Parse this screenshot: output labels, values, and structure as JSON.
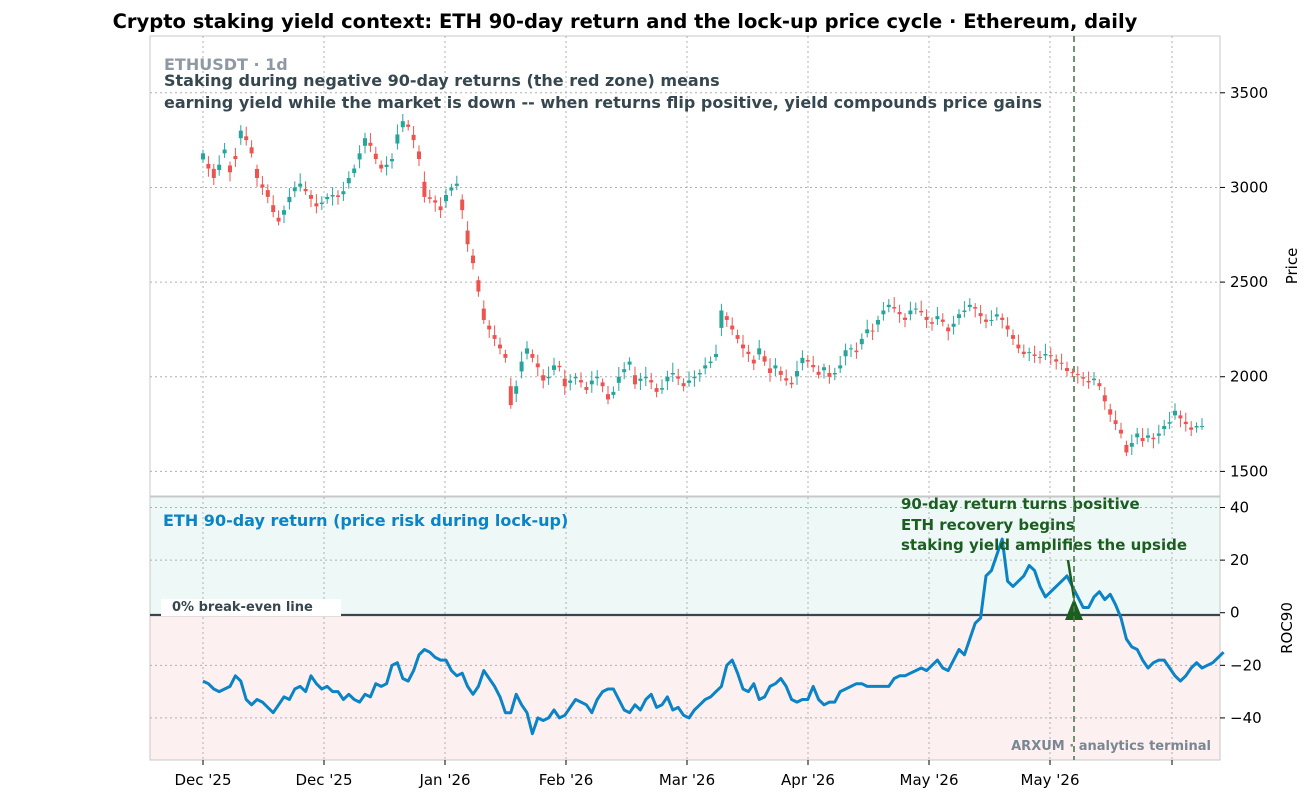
{
  "chart_data": [
    {
      "type": "candlestick",
      "title": "Crypto staking yield context: ETH 90-day return and the lock-up price cycle  ·  Ethereum, daily",
      "symbol_label": "ETHUSDT · 1d",
      "annotation_lines": [
        "Staking during negative 90-day returns (the red zone) means",
        "earning yield while the market is down -- when returns flip positive, yield compounds price gains"
      ],
      "ylabel": "Price",
      "ylim": [
        1370,
        3800
      ],
      "yticks": [
        1500,
        2000,
        2500,
        3000,
        3500
      ],
      "grid": true,
      "up_color": "#26a69a",
      "down_color": "#ef5350",
      "xtick_labels": [
        "Dec '25",
        "Dec '25",
        "Jan '26",
        "Feb '26",
        "Mar '26",
        "Apr '26",
        "May '26",
        "May '26"
      ],
      "close": [
        3180,
        3100,
        3050,
        3120,
        3200,
        3080,
        3150,
        3300,
        3250,
        3180,
        3050,
        3000,
        2950,
        2870,
        2820,
        2880,
        2950,
        3000,
        3020,
        2980,
        2940,
        2900,
        2920,
        2950,
        2960,
        2950,
        2980,
        3050,
        3100,
        3180,
        3260,
        3220,
        3150,
        3100,
        3120,
        3150,
        3280,
        3350,
        3320,
        3250,
        3150,
        2950,
        2940,
        2920,
        2880,
        2960,
        3000,
        3020,
        2880,
        2700,
        2600,
        2450,
        2300,
        2250,
        2200,
        2150,
        2100,
        1850,
        1950,
        2080,
        2150,
        2100,
        2050,
        1980,
        2000,
        2060,
        2050,
        1950,
        1980,
        2000,
        1970,
        1930,
        1980,
        2000,
        1950,
        1880,
        1920,
        2000,
        2040,
        2080,
        1960,
        1990,
        2000,
        1970,
        1920,
        1940,
        2000,
        2020,
        1990,
        1950,
        1980,
        2000,
        2020,
        2060,
        2080,
        2120,
        2350,
        2300,
        2250,
        2200,
        2150,
        2120,
        2070,
        2150,
        2080,
        2020,
        2060,
        2010,
        1980,
        1960,
        2030,
        2100,
        2080,
        2050,
        2010,
        2050,
        2000,
        2020,
        2060,
        2140,
        2150,
        2130,
        2200,
        2250,
        2240,
        2300,
        2350,
        2380,
        2360,
        2330,
        2300,
        2350,
        2360,
        2340,
        2300,
        2280,
        2320,
        2290,
        2240,
        2280,
        2330,
        2350,
        2380,
        2360,
        2320,
        2290,
        2300,
        2330,
        2300,
        2250,
        2200,
        2150,
        2120,
        2130,
        2110,
        2100,
        2120,
        2110,
        2080,
        2070,
        2030,
        2020,
        2010,
        1990,
        1970,
        1990,
        1950,
        1870,
        1800,
        1750,
        1700,
        1600,
        1650,
        1700,
        1660,
        1690,
        1670,
        1700,
        1740,
        1760,
        1820,
        1780,
        1750,
        1720,
        1740,
        1740
      ],
      "open_drift": [
        0.8,
        -0.6,
        -1.2,
        0.7,
        0.5,
        -0.9,
        -0.4,
        1.0,
        -0.5,
        -0.8,
        -1.2,
        -0.4,
        -0.9,
        -0.9,
        -0.5,
        0.6,
        0.7,
        0.5,
        0.4,
        -0.3,
        -0.5,
        -0.4,
        0.2,
        0.3,
        0.2,
        -0.2,
        0.4,
        0.7,
        0.6,
        0.8,
        1.0,
        -0.4,
        -0.7,
        -0.5,
        0.3,
        0.3,
        1.2,
        0.8,
        -0.3,
        -0.7,
        -1.0,
        -2.0,
        -0.2,
        -0.3,
        -0.5,
        0.8,
        0.4,
        0.3,
        -1.4,
        -1.8,
        -1.0,
        -1.5,
        -1.5,
        -0.5,
        -0.5,
        -0.5,
        -0.5,
        -2.5,
        1.0,
        1.3,
        0.7,
        -0.5,
        -0.5,
        -0.7,
        0.2,
        0.6,
        -0.2,
        -1.0,
        0.3,
        0.2,
        -0.3,
        -0.4,
        0.5,
        0.2,
        -0.5,
        -0.7,
        0.4,
        0.8,
        0.4,
        0.4,
        -1.2,
        0.3,
        0.2,
        -0.3,
        -0.5,
        0.2,
        0.6,
        0.2,
        -0.3,
        -0.4,
        0.3,
        0.2,
        0.2,
        0.4,
        0.2,
        0.4,
        2.3,
        -0.5,
        -0.5,
        -0.5,
        -0.5,
        -0.3,
        -0.5,
        0.8,
        -0.7,
        -0.6,
        0.4,
        -0.5,
        -0.3,
        -0.2,
        0.7,
        0.7,
        -0.2,
        -0.3,
        -0.4,
        0.4,
        -0.5,
        0.2,
        0.4,
        0.8,
        0.1,
        -0.2,
        0.7,
        0.5,
        -0.1,
        0.6,
        0.5,
        0.3,
        -0.2,
        -0.3,
        -0.3,
        0.5,
        0.1,
        -0.2,
        -0.4,
        -0.2,
        0.4,
        -0.3,
        -0.5,
        0.4,
        0.5,
        0.2,
        0.3,
        -0.2,
        -0.4,
        -0.3,
        0.1,
        0.3,
        -0.3,
        -0.5,
        -0.5,
        -0.5,
        -0.3,
        0.1,
        -0.2,
        -0.1,
        0.2,
        -0.1,
        -0.3,
        -0.1,
        -0.4,
        -0.1,
        -0.1,
        -0.2,
        -0.2,
        0.2,
        -0.4,
        -0.8,
        -0.7,
        -0.5,
        -0.5,
        -1.0,
        0.5,
        0.5,
        -0.4,
        0.3,
        -0.2,
        0.3,
        0.4,
        0.2,
        0.6,
        -0.4,
        -0.3,
        -0.3,
        0.2,
        0.0
      ]
    },
    {
      "type": "line",
      "label": "ETH 90-day return (price risk during lock-up)",
      "ylabel": "ROC90",
      "ylim": [
        -56,
        44
      ],
      "yticks": [
        -40,
        -20,
        0,
        20,
        40
      ],
      "zero_label": "0%  break-even line",
      "line_color": "#0a84c6",
      "positive_zone_color": "#eef8f7",
      "negative_zone_color": "#fdf0f0",
      "series": [
        -26,
        -27,
        -29,
        -30,
        -29,
        -28,
        -24,
        -26,
        -33,
        -35,
        -33,
        -34,
        -36,
        -38,
        -35,
        -32,
        -33,
        -29,
        -28,
        -30,
        -24,
        -27,
        -29,
        -28,
        -30,
        -30,
        -33,
        -31,
        -33,
        -34,
        -31,
        -32,
        -27,
        -28,
        -27,
        -20,
        -19,
        -25,
        -26,
        -22,
        -16,
        -14,
        -15,
        -17,
        -18,
        -18,
        -22,
        -24,
        -23,
        -28,
        -31,
        -28,
        -22,
        -25,
        -28,
        -32,
        -38,
        -38,
        -31,
        -35,
        -38,
        -46,
        -40,
        -41,
        -40,
        -37,
        -40,
        -39,
        -36,
        -33,
        -34,
        -35,
        -38,
        -33,
        -30,
        -29,
        -29,
        -33,
        -37,
        -38,
        -35,
        -37,
        -33,
        -31,
        -36,
        -35,
        -32,
        -37,
        -36,
        -39,
        -40,
        -37,
        -35,
        -33,
        -32,
        -30,
        -28,
        -20,
        -18,
        -23,
        -29,
        -30,
        -27,
        -33,
        -32,
        -28,
        -27,
        -25,
        -28,
        -33,
        -34,
        -33,
        -33,
        -28,
        -33,
        -35,
        -34,
        -34,
        -30,
        -29,
        -28,
        -27,
        -27,
        -28,
        -28,
        -28,
        -28,
        -28,
        -25,
        -24,
        -24,
        -23,
        -22,
        -21,
        -22,
        -20,
        -18,
        -21,
        -22,
        -18,
        -14,
        -16,
        -10,
        -4,
        -2,
        14,
        16,
        22,
        28,
        12,
        10,
        12,
        14,
        18,
        16,
        10,
        6,
        8,
        10,
        12,
        14,
        10,
        6,
        2,
        2,
        6,
        8,
        5,
        7,
        3,
        -2,
        -10,
        -13,
        -14,
        -18,
        -21,
        -19,
        -18,
        -18,
        -21,
        -24,
        -26,
        -24,
        -21,
        -19,
        -21,
        -20,
        -19,
        -17,
        -15
      ],
      "event_label": [
        "90-day return turns positive",
        "ETH recovery begins",
        "staking yield amplifies the upside"
      ],
      "event_marker_value": 0
    }
  ],
  "watermark": "ARXUM · analytics terminal",
  "colors": {
    "text": "#000000",
    "annotation": "#37474f",
    "symbol": "#8f99a3",
    "event": "#1b5e20",
    "grid": "#b0b0b0",
    "watermark": "#7a8793"
  }
}
